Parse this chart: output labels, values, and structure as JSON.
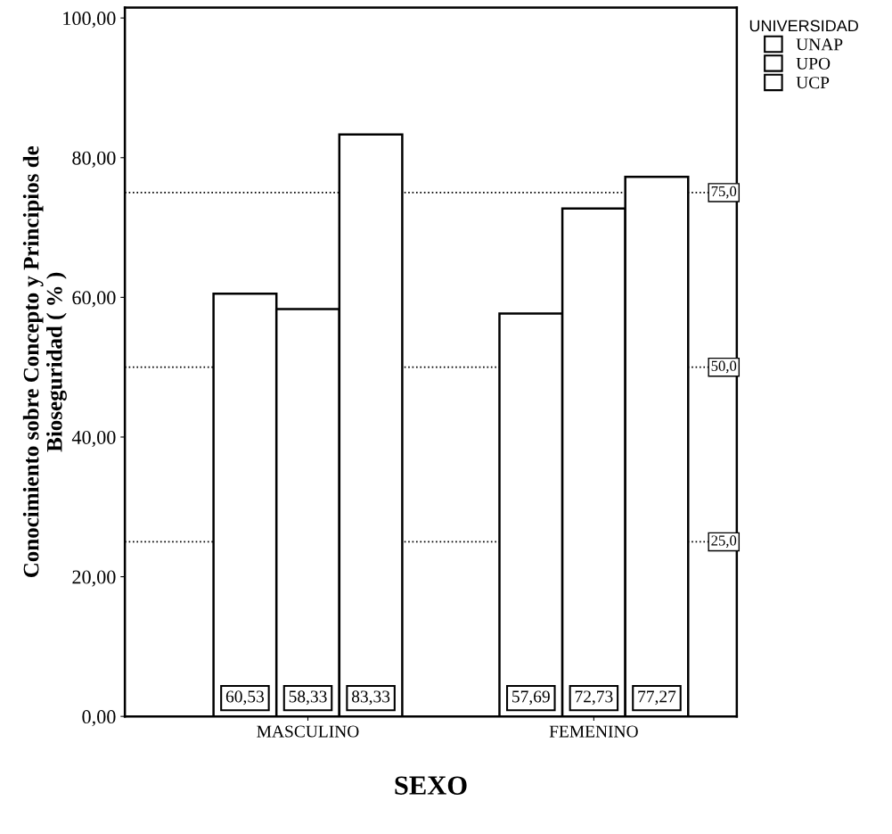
{
  "chart_data": {
    "type": "bar",
    "xlabel": "SEXO",
    "ylabel": "Conocimiento sobre Concepto y Principios de\nBioseguridad ( % )",
    "legend_title": "UNIVERSIDAD",
    "categories": [
      "MASCULINO",
      "FEMENINO"
    ],
    "series": [
      {
        "name": "UNAP",
        "color": "#ffffff",
        "values": [
          60.53,
          57.69
        ],
        "value_labels": [
          "60,53",
          "57,69"
        ]
      },
      {
        "name": "UPO",
        "color": "#ffffff",
        "values": [
          58.33,
          72.73
        ],
        "value_labels": [
          "58,33",
          "72,73"
        ]
      },
      {
        "name": "UCP",
        "color": "#ffffff",
        "values": [
          83.33,
          77.27
        ],
        "value_labels": [
          "83,33",
          "77,27"
        ]
      }
    ],
    "ylim": [
      0,
      101.5
    ],
    "yticks": [
      {
        "value": 0,
        "label": "0,00"
      },
      {
        "value": 20,
        "label": "20,00"
      },
      {
        "value": 40,
        "label": "40,00"
      },
      {
        "value": 60,
        "label": "60,00"
      },
      {
        "value": 80,
        "label": "80,00"
      },
      {
        "value": 100,
        "label": "100,00"
      }
    ],
    "ref_lines": [
      {
        "axis": "y",
        "value": 75,
        "label": "75,0",
        "line_style": "dotted"
      },
      {
        "axis": "y",
        "value": 50,
        "label": "50,0",
        "line_style": "dotted"
      },
      {
        "axis": "y",
        "value": 25,
        "label": "25,0",
        "line_style": "dotted"
      }
    ],
    "legend": "top right",
    "grid": false
  }
}
